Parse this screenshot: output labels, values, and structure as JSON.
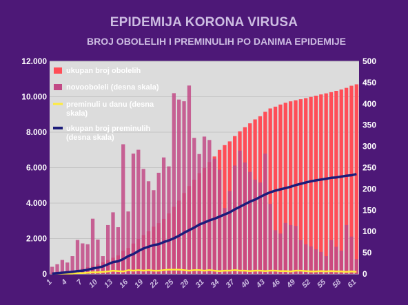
{
  "chart_data": {
    "type": "bar",
    "title": "EPIDEMIJA KORONA VIRUSA",
    "subtitle": "BROJ OBOLELIH I PREMINULIH PO DANIMA EPIDEMIJE",
    "x": [
      1,
      2,
      3,
      4,
      5,
      6,
      7,
      8,
      9,
      10,
      11,
      12,
      13,
      14,
      15,
      16,
      17,
      18,
      19,
      20,
      21,
      22,
      23,
      24,
      25,
      26,
      27,
      28,
      29,
      30,
      31,
      32,
      33,
      34,
      35,
      36,
      37,
      38,
      39,
      40,
      41,
      42,
      43,
      44,
      45,
      46,
      47,
      48,
      49,
      50,
      51,
      52,
      53,
      54,
      55,
      56,
      57,
      58,
      59,
      60,
      61
    ],
    "x_tick_labels": [
      "1",
      "4",
      "7",
      "10",
      "13",
      "16",
      "19",
      "22",
      "25",
      "28",
      "31",
      "34",
      "37",
      "40",
      "43",
      "46",
      "49",
      "52",
      "55",
      "58",
      "61"
    ],
    "y_left": {
      "ticks": [
        "0",
        "2.000",
        "4.000",
        "6.000",
        "8.000",
        "10.000",
        "12.000"
      ],
      "ylim": [
        0,
        12000
      ]
    },
    "y_right": {
      "ticks": [
        "0",
        "50",
        "100",
        "150",
        "200",
        "250",
        "300",
        "350",
        "400",
        "450",
        "500"
      ],
      "ylim": [
        0,
        500
      ]
    },
    "legend_position": "top-left",
    "series": [
      {
        "name": "ukupan broj obolelih",
        "kind": "bar",
        "axis": "left",
        "color": "#ff4d57",
        "values": [
          35,
          65,
          103,
          138,
          178,
          222,
          305,
          385,
          460,
          537,
          660,
          790,
          920,
          1050,
          1320,
          1470,
          1720,
          1970,
          2200,
          2410,
          2670,
          2870,
          3110,
          3420,
          3790,
          4140,
          4570,
          4960,
          5320,
          5690,
          5990,
          6320,
          6630,
          7000,
          7270,
          7480,
          7780,
          8050,
          8280,
          8500,
          8720,
          8900,
          9150,
          9340,
          9440,
          9560,
          9660,
          9740,
          9800,
          9860,
          9920,
          9990,
          10060,
          10130,
          10190,
          10260,
          10330,
          10410,
          10500,
          10620,
          10700
        ]
      },
      {
        "name": "novooboleli (desna skala)",
        "kind": "bar",
        "axis": "right",
        "color": "#c24a86",
        "values": [
          17,
          23,
          33,
          27,
          42,
          80,
          72,
          70,
          130,
          81,
          42,
          115,
          145,
          110,
          305,
          147,
          283,
          292,
          247,
          218,
          197,
          238,
          274,
          253,
          425,
          410,
          406,
          443,
          320,
          282,
          323,
          315,
          271,
          245,
          155,
          195,
          255,
          290,
          262,
          240,
          222,
          215,
          283,
          165,
          103,
          95,
          120,
          115,
          113,
          80,
          70,
          65,
          58,
          52,
          42,
          80,
          64,
          55,
          115,
          88,
          35
        ]
      },
      {
        "name": "preminuli u danu (desna skala)",
        "kind": "line",
        "axis": "right",
        "color": "#ffeb3b",
        "values": [
          1,
          1,
          1,
          1,
          1,
          2,
          2,
          3,
          4,
          4,
          5,
          6,
          8,
          7,
          6,
          9,
          8,
          9,
          8,
          9,
          8,
          8,
          9,
          10,
          10,
          10,
          9,
          8,
          9,
          9,
          8,
          9,
          8,
          7,
          8,
          8,
          9,
          8,
          8,
          7,
          8,
          8,
          7,
          8,
          8,
          7,
          7,
          6,
          8,
          8,
          7,
          6,
          6,
          7,
          6,
          7,
          6,
          6,
          5,
          6,
          5
        ]
      },
      {
        "name": "ukupan broj preminulih (desna skala)",
        "kind": "line",
        "axis": "right",
        "color": "#1c1c7a",
        "values": [
          1,
          2,
          3,
          4,
          5,
          7,
          8,
          10,
          13,
          15,
          18,
          23,
          28,
          30,
          35,
          42,
          47,
          54,
          60,
          64,
          68,
          70,
          75,
          79,
          84,
          90,
          97,
          103,
          109,
          116,
          121,
          126,
          130,
          135,
          140,
          145,
          152,
          158,
          164,
          170,
          175,
          181,
          187,
          192,
          196,
          199,
          202,
          205,
          209,
          212,
          215,
          218,
          220,
          222,
          224,
          226,
          227,
          229,
          231,
          232,
          235
        ]
      }
    ]
  }
}
